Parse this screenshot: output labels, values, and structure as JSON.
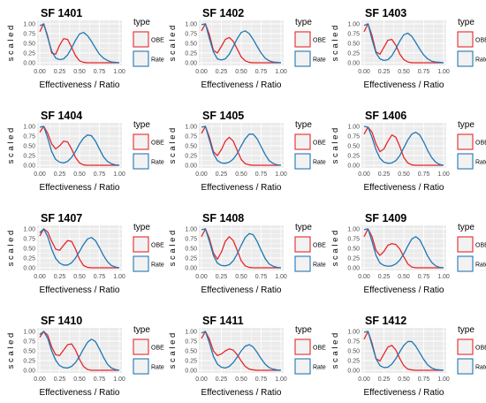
{
  "figure": {
    "type_legend_title": "type",
    "legend_labels": [
      "OBE",
      "Rate"
    ],
    "xlabel": "Effectiveness / Ratio",
    "ylabel": "s c a l e d",
    "colors": {
      "OBE": "#e8262b",
      "Rate": "#1f78b4",
      "panel_bg": "#ebebeb",
      "grid_major": "#ffffff"
    },
    "x_ticks": [
      "0.00",
      "0.25",
      "0.50",
      "0.75",
      "1.00"
    ],
    "y_ticks": [
      "0.00",
      "0.25",
      "0.50",
      "0.75",
      "1.00"
    ]
  },
  "chart_data": [
    {
      "type": "line",
      "title": "SF 1401",
      "xlabel": "Effectiveness / Ratio",
      "ylabel": "s c a l e d",
      "xlim": [
        0,
        1
      ],
      "ylim": [
        0,
        1
      ],
      "legend_placement": "right",
      "x": [
        0,
        0.05,
        0.1,
        0.15,
        0.2,
        0.25,
        0.3,
        0.35,
        0.4,
        0.45,
        0.5,
        0.55,
        0.6,
        0.65,
        0.7,
        0.75,
        0.8,
        0.85,
        0.9,
        0.95,
        1.0
      ],
      "series": [
        {
          "name": "OBE",
          "values": [
            0.8,
            1.0,
            0.68,
            0.25,
            0.22,
            0.45,
            0.62,
            0.6,
            0.4,
            0.18,
            0.05,
            0.01,
            0,
            0,
            0,
            0,
            0,
            0,
            0,
            0,
            0
          ]
        },
        {
          "name": "Rate",
          "values": [
            0.95,
            1.0,
            0.65,
            0.3,
            0.12,
            0.08,
            0.1,
            0.2,
            0.38,
            0.58,
            0.74,
            0.78,
            0.7,
            0.55,
            0.38,
            0.22,
            0.12,
            0.06,
            0.02,
            0.01,
            0
          ]
        }
      ]
    },
    {
      "type": "line",
      "title": "SF 1402",
      "xlabel": "Effectiveness / Ratio",
      "ylabel": "s c a l e d",
      "xlim": [
        0,
        1
      ],
      "ylim": [
        0,
        1
      ],
      "legend_placement": "right",
      "x": [
        0,
        0.05,
        0.1,
        0.15,
        0.2,
        0.25,
        0.3,
        0.35,
        0.4,
        0.45,
        0.5,
        0.55,
        0.6,
        0.65,
        0.7,
        0.75,
        0.8,
        0.85,
        0.9,
        0.95,
        1.0
      ],
      "series": [
        {
          "name": "OBE",
          "values": [
            0.82,
            1.0,
            0.72,
            0.32,
            0.25,
            0.42,
            0.6,
            0.65,
            0.55,
            0.35,
            0.15,
            0.05,
            0.01,
            0,
            0,
            0,
            0,
            0,
            0,
            0,
            0
          ]
        },
        {
          "name": "Rate",
          "values": [
            0.98,
            1.0,
            0.62,
            0.28,
            0.1,
            0.07,
            0.1,
            0.22,
            0.42,
            0.62,
            0.78,
            0.82,
            0.75,
            0.6,
            0.42,
            0.25,
            0.12,
            0.05,
            0.02,
            0.01,
            0
          ]
        }
      ]
    },
    {
      "type": "line",
      "title": "SF 1403",
      "xlabel": "Effectiveness / Ratio",
      "ylabel": "s c a l e d",
      "xlim": [
        0,
        1
      ],
      "ylim": [
        0,
        1
      ],
      "legend_placement": "right",
      "x": [
        0,
        0.05,
        0.1,
        0.15,
        0.2,
        0.25,
        0.3,
        0.35,
        0.4,
        0.45,
        0.5,
        0.55,
        0.6,
        0.65,
        0.7,
        0.75,
        0.8,
        0.85,
        0.9,
        0.95,
        1.0
      ],
      "series": [
        {
          "name": "OBE",
          "values": [
            0.8,
            1.0,
            0.7,
            0.28,
            0.22,
            0.4,
            0.58,
            0.6,
            0.45,
            0.22,
            0.08,
            0.02,
            0,
            0,
            0,
            0,
            0,
            0,
            0,
            0,
            0
          ]
        },
        {
          "name": "Rate",
          "values": [
            0.96,
            1.0,
            0.6,
            0.25,
            0.1,
            0.06,
            0.08,
            0.18,
            0.36,
            0.56,
            0.72,
            0.76,
            0.68,
            0.52,
            0.35,
            0.2,
            0.1,
            0.04,
            0.02,
            0.01,
            0
          ]
        }
      ]
    },
    {
      "type": "line",
      "title": "SF 1404",
      "xlabel": "Effectiveness / Ratio",
      "ylabel": "s c a l e d",
      "xlim": [
        0,
        1
      ],
      "ylim": [
        0,
        1
      ],
      "legend_placement": "right",
      "x": [
        0,
        0.05,
        0.1,
        0.15,
        0.2,
        0.25,
        0.3,
        0.35,
        0.4,
        0.45,
        0.5,
        0.55,
        0.6,
        0.65,
        0.7,
        0.75,
        0.8,
        0.85,
        0.9,
        0.95,
        1.0
      ],
      "series": [
        {
          "name": "OBE",
          "values": [
            0.85,
            1.0,
            0.82,
            0.55,
            0.42,
            0.5,
            0.62,
            0.6,
            0.42,
            0.2,
            0.06,
            0.01,
            0,
            0,
            0,
            0,
            0,
            0,
            0,
            0,
            0
          ]
        },
        {
          "name": "Rate",
          "values": [
            0.98,
            1.0,
            0.7,
            0.35,
            0.15,
            0.08,
            0.06,
            0.1,
            0.2,
            0.36,
            0.55,
            0.7,
            0.78,
            0.76,
            0.62,
            0.42,
            0.22,
            0.1,
            0.04,
            0.01,
            0
          ]
        }
      ]
    },
    {
      "type": "line",
      "title": "SF 1405",
      "xlabel": "Effectiveness / Ratio",
      "ylabel": "s c a l e d",
      "xlim": [
        0,
        1
      ],
      "ylim": [
        0,
        1
      ],
      "legend_placement": "right",
      "x": [
        0,
        0.05,
        0.1,
        0.15,
        0.2,
        0.25,
        0.3,
        0.35,
        0.4,
        0.45,
        0.5,
        0.55,
        0.6,
        0.65,
        0.7,
        0.75,
        0.8,
        0.85,
        0.9,
        0.95,
        1.0
      ],
      "series": [
        {
          "name": "OBE",
          "values": [
            0.82,
            1.0,
            0.72,
            0.35,
            0.25,
            0.4,
            0.62,
            0.72,
            0.62,
            0.38,
            0.15,
            0.04,
            0.01,
            0,
            0,
            0,
            0,
            0,
            0,
            0,
            0
          ]
        },
        {
          "name": "Rate",
          "values": [
            0.98,
            1.0,
            0.65,
            0.3,
            0.12,
            0.06,
            0.05,
            0.08,
            0.16,
            0.3,
            0.5,
            0.68,
            0.8,
            0.8,
            0.68,
            0.48,
            0.28,
            0.12,
            0.05,
            0.01,
            0
          ]
        }
      ]
    },
    {
      "type": "line",
      "title": "SF 1406",
      "xlabel": "Effectiveness / Ratio",
      "ylabel": "s c a l e d",
      "xlim": [
        0,
        1
      ],
      "ylim": [
        0,
        1
      ],
      "legend_placement": "right",
      "x": [
        0,
        0.05,
        0.1,
        0.15,
        0.2,
        0.25,
        0.3,
        0.35,
        0.4,
        0.45,
        0.5,
        0.55,
        0.6,
        0.65,
        0.7,
        0.75,
        0.8,
        0.85,
        0.9,
        0.95,
        1.0
      ],
      "series": [
        {
          "name": "OBE",
          "values": [
            0.8,
            0.98,
            0.85,
            0.55,
            0.35,
            0.42,
            0.62,
            0.78,
            0.72,
            0.48,
            0.2,
            0.06,
            0.01,
            0,
            0,
            0,
            0,
            0,
            0,
            0,
            0
          ]
        },
        {
          "name": "Rate",
          "values": [
            1.0,
            0.98,
            0.72,
            0.4,
            0.18,
            0.08,
            0.05,
            0.06,
            0.12,
            0.25,
            0.45,
            0.65,
            0.8,
            0.85,
            0.78,
            0.6,
            0.38,
            0.2,
            0.08,
            0.02,
            0
          ]
        }
      ]
    },
    {
      "type": "line",
      "title": "SF 1407",
      "xlabel": "Effectiveness / Ratio",
      "ylabel": "s c a l e d",
      "xlim": [
        0,
        1
      ],
      "ylim": [
        0,
        1
      ],
      "legend_placement": "right",
      "x": [
        0,
        0.05,
        0.1,
        0.15,
        0.2,
        0.25,
        0.3,
        0.35,
        0.4,
        0.45,
        0.5,
        0.55,
        0.6,
        0.65,
        0.7,
        0.75,
        0.8,
        0.85,
        0.9,
        0.95,
        1.0
      ],
      "series": [
        {
          "name": "OBE",
          "values": [
            0.82,
            1.0,
            0.92,
            0.68,
            0.48,
            0.45,
            0.58,
            0.7,
            0.68,
            0.48,
            0.22,
            0.06,
            0.01,
            0,
            0,
            0,
            0,
            0,
            0,
            0,
            0
          ]
        },
        {
          "name": "Rate",
          "values": [
            0.9,
            1.0,
            0.8,
            0.48,
            0.24,
            0.12,
            0.07,
            0.07,
            0.13,
            0.25,
            0.42,
            0.6,
            0.74,
            0.78,
            0.7,
            0.52,
            0.32,
            0.16,
            0.06,
            0.02,
            0
          ]
        }
      ]
    },
    {
      "type": "line",
      "title": "SF 1408",
      "xlabel": "Effectiveness / Ratio",
      "ylabel": "s c a l e d",
      "xlim": [
        0,
        1
      ],
      "ylim": [
        0,
        1
      ],
      "legend_placement": "right",
      "x": [
        0,
        0.05,
        0.1,
        0.15,
        0.2,
        0.25,
        0.3,
        0.35,
        0.4,
        0.45,
        0.5,
        0.55,
        0.6,
        0.65,
        0.7,
        0.75,
        0.8,
        0.85,
        0.9,
        0.95,
        1.0
      ],
      "series": [
        {
          "name": "OBE",
          "values": [
            0.8,
            1.0,
            0.75,
            0.38,
            0.22,
            0.4,
            0.68,
            0.8,
            0.7,
            0.45,
            0.18,
            0.05,
            0.01,
            0,
            0,
            0,
            0,
            0,
            0,
            0,
            0
          ]
        },
        {
          "name": "Rate",
          "values": [
            0.98,
            1.0,
            0.68,
            0.32,
            0.12,
            0.06,
            0.05,
            0.08,
            0.18,
            0.36,
            0.58,
            0.78,
            0.88,
            0.85,
            0.68,
            0.45,
            0.24,
            0.1,
            0.04,
            0.01,
            0
          ]
        }
      ]
    },
    {
      "type": "line",
      "title": "SF 1409",
      "xlabel": "Effectiveness / Ratio",
      "ylabel": "s c a l e d",
      "xlim": [
        0,
        1
      ],
      "ylim": [
        0,
        1
      ],
      "legend_placement": "right",
      "x": [
        0,
        0.05,
        0.1,
        0.15,
        0.2,
        0.25,
        0.3,
        0.35,
        0.4,
        0.45,
        0.5,
        0.55,
        0.6,
        0.65,
        0.7,
        0.75,
        0.8,
        0.85,
        0.9,
        0.95,
        1.0
      ],
      "series": [
        {
          "name": "OBE",
          "values": [
            0.8,
            1.0,
            0.8,
            0.45,
            0.32,
            0.42,
            0.58,
            0.62,
            0.6,
            0.48,
            0.28,
            0.1,
            0.02,
            0,
            0,
            0,
            0,
            0,
            0,
            0,
            0
          ]
        },
        {
          "name": "Rate",
          "values": [
            0.98,
            1.0,
            0.68,
            0.32,
            0.12,
            0.06,
            0.04,
            0.05,
            0.1,
            0.2,
            0.36,
            0.56,
            0.74,
            0.8,
            0.72,
            0.52,
            0.3,
            0.14,
            0.05,
            0.01,
            0
          ]
        }
      ]
    },
    {
      "type": "line",
      "title": "SF 1410",
      "xlabel": "Effectiveness / Ratio",
      "ylabel": "s c a l e d",
      "xlim": [
        0,
        1
      ],
      "ylim": [
        0,
        1
      ],
      "legend_placement": "right",
      "x": [
        0,
        0.05,
        0.1,
        0.15,
        0.2,
        0.25,
        0.3,
        0.35,
        0.4,
        0.45,
        0.5,
        0.55,
        0.6,
        0.65,
        0.7,
        0.75,
        0.8,
        0.85,
        0.9,
        0.95,
        1.0
      ],
      "series": [
        {
          "name": "OBE",
          "values": [
            0.85,
            1.0,
            0.9,
            0.6,
            0.4,
            0.38,
            0.52,
            0.66,
            0.68,
            0.52,
            0.28,
            0.1,
            0.02,
            0,
            0,
            0,
            0,
            0,
            0,
            0,
            0
          ]
        },
        {
          "name": "Rate",
          "values": [
            0.92,
            1.0,
            0.82,
            0.5,
            0.26,
            0.12,
            0.07,
            0.06,
            0.1,
            0.2,
            0.36,
            0.55,
            0.72,
            0.8,
            0.74,
            0.55,
            0.34,
            0.16,
            0.06,
            0.02,
            0
          ]
        }
      ]
    },
    {
      "type": "line",
      "title": "SF 1411",
      "xlabel": "Effectiveness / Ratio",
      "ylabel": "s c a l e d",
      "xlim": [
        0,
        1
      ],
      "ylim": [
        0,
        1
      ],
      "legend_placement": "right",
      "x": [
        0,
        0.05,
        0.1,
        0.15,
        0.2,
        0.25,
        0.3,
        0.35,
        0.4,
        0.45,
        0.5,
        0.55,
        0.6,
        0.65,
        0.7,
        0.75,
        0.8,
        0.85,
        0.9,
        0.95,
        1.0
      ],
      "series": [
        {
          "name": "OBE",
          "values": [
            0.82,
            1.0,
            0.8,
            0.5,
            0.38,
            0.42,
            0.5,
            0.55,
            0.52,
            0.4,
            0.24,
            0.1,
            0.03,
            0.01,
            0,
            0,
            0,
            0,
            0,
            0,
            0
          ]
        },
        {
          "name": "Rate",
          "values": [
            0.96,
            1.0,
            0.7,
            0.36,
            0.16,
            0.08,
            0.06,
            0.1,
            0.2,
            0.34,
            0.5,
            0.62,
            0.66,
            0.6,
            0.46,
            0.3,
            0.16,
            0.07,
            0.03,
            0.01,
            0
          ]
        }
      ]
    },
    {
      "type": "line",
      "title": "SF 1412",
      "xlabel": "Effectiveness / Ratio",
      "ylabel": "s c a l e d",
      "xlim": [
        0,
        1
      ],
      "ylim": [
        0,
        1
      ],
      "legend_placement": "right",
      "x": [
        0,
        0.05,
        0.1,
        0.15,
        0.2,
        0.25,
        0.3,
        0.35,
        0.4,
        0.45,
        0.5,
        0.55,
        0.6,
        0.65,
        0.7,
        0.75,
        0.8,
        0.85,
        0.9,
        0.95,
        1.0
      ],
      "series": [
        {
          "name": "OBE",
          "values": [
            0.8,
            1.0,
            0.7,
            0.3,
            0.24,
            0.42,
            0.6,
            0.64,
            0.52,
            0.3,
            0.12,
            0.03,
            0.01,
            0,
            0,
            0,
            0,
            0,
            0,
            0,
            0
          ]
        },
        {
          "name": "Rate",
          "values": [
            0.98,
            1.0,
            0.65,
            0.3,
            0.12,
            0.07,
            0.08,
            0.16,
            0.3,
            0.48,
            0.64,
            0.74,
            0.74,
            0.62,
            0.45,
            0.28,
            0.14,
            0.06,
            0.02,
            0.01,
            0
          ]
        }
      ]
    }
  ]
}
